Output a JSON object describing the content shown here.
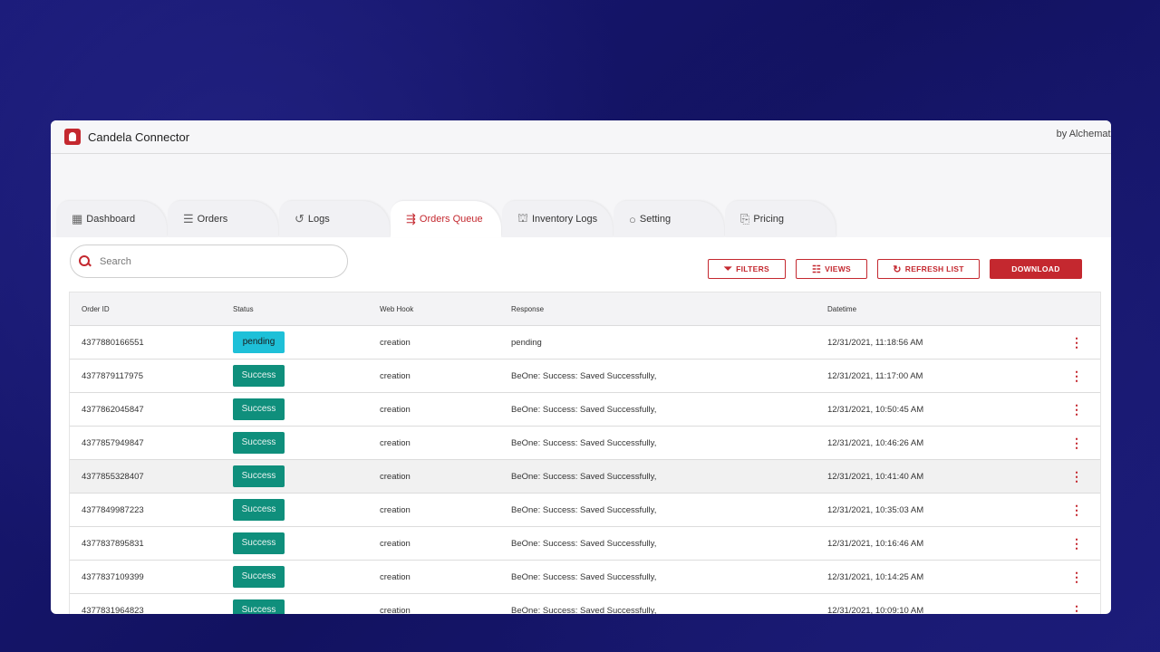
{
  "app": {
    "title": "Candela Connector",
    "by_label": "by Alchemati"
  },
  "tabs": [
    {
      "label": "Dashboard",
      "icon": "dashboard-grid-icon",
      "glyph": "▦"
    },
    {
      "label": "Orders",
      "icon": "list-icon",
      "glyph": "☰"
    },
    {
      "label": "Logs",
      "icon": "history-icon",
      "glyph": "↺"
    },
    {
      "label": "Orders Queue",
      "icon": "queue-icon",
      "glyph": "⇶",
      "active": true
    },
    {
      "label": "Inventory Logs",
      "icon": "inventory-icon",
      "glyph": "⛫"
    },
    {
      "label": "Setting",
      "icon": "circle-icon",
      "glyph": "○"
    },
    {
      "label": "Pricing",
      "icon": "pricing-doc-icon",
      "glyph": "⎘"
    }
  ],
  "search": {
    "placeholder": "Search",
    "value": ""
  },
  "toolbar": {
    "filters_label": "FILTERS",
    "views_label": "VIEWS",
    "refresh_label": "REFRESH LIST",
    "download_label": "DOWNLOAD"
  },
  "table": {
    "headers": [
      "Order ID",
      "Status",
      "Web Hook",
      "Response",
      "Datetime"
    ],
    "rows": [
      {
        "order_id": "4377880166551",
        "status": "pending",
        "status_type": "pending",
        "webhook": "creation",
        "response": "pending",
        "datetime": "12/31/2021, 11:18:56 AM"
      },
      {
        "order_id": "4377879117975",
        "status": "Success",
        "status_type": "success",
        "webhook": "creation",
        "response": "BeOne: Success: Saved Successfully,",
        "datetime": "12/31/2021, 11:17:00 AM"
      },
      {
        "order_id": "4377862045847",
        "status": "Success",
        "status_type": "success",
        "webhook": "creation",
        "response": "BeOne: Success: Saved Successfully,",
        "datetime": "12/31/2021, 10:50:45 AM"
      },
      {
        "order_id": "4377857949847",
        "status": "Success",
        "status_type": "success",
        "webhook": "creation",
        "response": "BeOne: Success: Saved Successfully,",
        "datetime": "12/31/2021, 10:46:26 AM"
      },
      {
        "order_id": "4377855328407",
        "status": "Success",
        "status_type": "success",
        "webhook": "creation",
        "response": "BeOne: Success: Saved Successfully,",
        "datetime": "12/31/2021, 10:41:40 AM",
        "highlighted": true
      },
      {
        "order_id": "4377849987223",
        "status": "Success",
        "status_type": "success",
        "webhook": "creation",
        "response": "BeOne: Success: Saved Successfully,",
        "datetime": "12/31/2021, 10:35:03 AM"
      },
      {
        "order_id": "4377837895831",
        "status": "Success",
        "status_type": "success",
        "webhook": "creation",
        "response": "BeOne: Success: Saved Successfully,",
        "datetime": "12/31/2021, 10:16:46 AM"
      },
      {
        "order_id": "4377837109399",
        "status": "Success",
        "status_type": "success",
        "webhook": "creation",
        "response": "BeOne: Success: Saved Successfully,",
        "datetime": "12/31/2021, 10:14:25 AM"
      },
      {
        "order_id": "4377831964823",
        "status": "Success",
        "status_type": "success",
        "webhook": "creation",
        "response": "BeOne: Success: Saved Successfully,",
        "datetime": "12/31/2021, 10:09:10 AM"
      }
    ]
  },
  "colors": {
    "accent": "#c4282f",
    "pending": "#1ec0d8",
    "success": "#0f8f7c",
    "background": "#16166a"
  }
}
